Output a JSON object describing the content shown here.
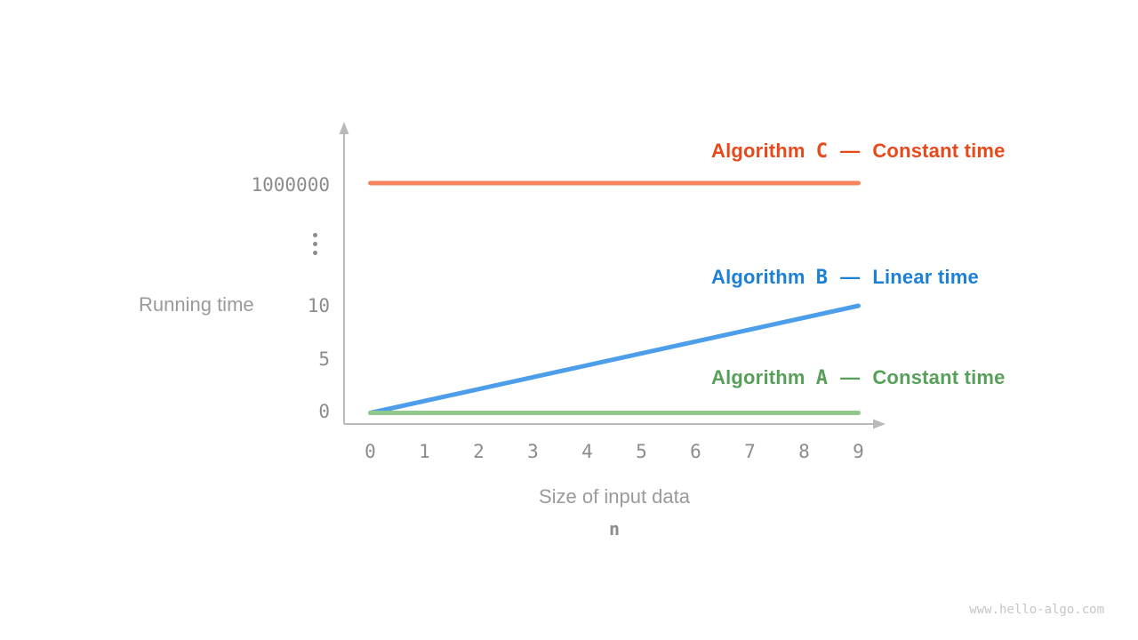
{
  "page": {
    "background": "#ffffff",
    "watermark": "www.hello-algo.com"
  },
  "chart_data": {
    "type": "line",
    "title": "",
    "xlabel": "Size of input data",
    "xlabel_variable": "n",
    "ylabel": "Running time",
    "x_ticks": [
      "0",
      "1",
      "2",
      "3",
      "4",
      "5",
      "6",
      "7",
      "8",
      "9"
    ],
    "y_ticks": [
      "1000000",
      "10",
      "5",
      "0"
    ],
    "y_axis_break_symbol": "⋮",
    "x_range": [
      0,
      9
    ],
    "grid": false,
    "legend_position": "inline-right-of-plot",
    "colors": {
      "axis": "#b9b9b9",
      "tick_text": "#8c8c8c",
      "axis_label_text": "#9a9a9a",
      "watermark_text": "#c6c6c6"
    },
    "series": [
      {
        "id": "algorithm-c",
        "label_word": "Algorithm",
        "label_letter": "C",
        "dash": "—",
        "desc": "Constant time",
        "text_color": "#e8491b",
        "line_color": "#f5845c",
        "points": [
          [
            0,
            1000000
          ],
          [
            9,
            1000000
          ]
        ]
      },
      {
        "id": "algorithm-b",
        "label_word": "Algorithm",
        "label_letter": "B",
        "dash": "—",
        "desc": "Linear time",
        "text_color": "#1b80d6",
        "line_color": "#4d9eea",
        "points": [
          [
            0,
            0
          ],
          [
            9,
            10
          ]
        ]
      },
      {
        "id": "algorithm-a",
        "label_word": "Algorithm",
        "label_letter": "A",
        "dash": "—",
        "desc": "Constant time",
        "text_color": "#57a05a",
        "line_color": "#90c98b",
        "points": [
          [
            0,
            0
          ],
          [
            9,
            0
          ]
        ]
      }
    ]
  }
}
